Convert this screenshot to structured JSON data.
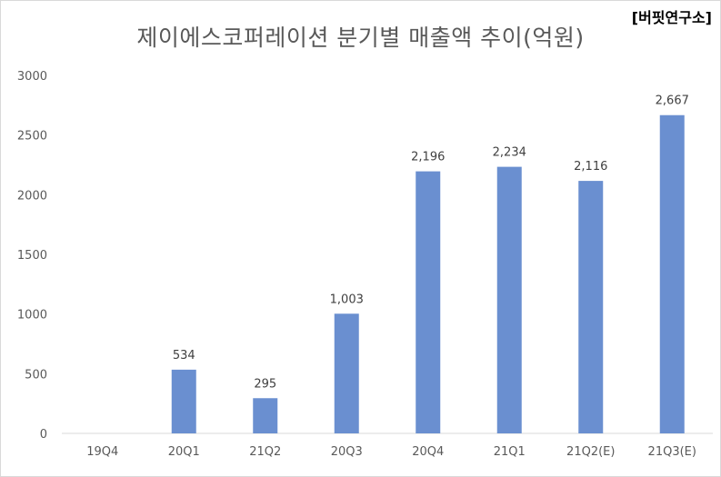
{
  "brand": "[버핏연구소]",
  "chart_data": {
    "type": "bar",
    "title": "제이에스코퍼레이션 분기별 매출액 추이(억원)",
    "categories": [
      "19Q4",
      "20Q1",
      "21Q2",
      "20Q3",
      "20Q4",
      "21Q1",
      "21Q2(E)",
      "21Q3(E)"
    ],
    "values": [
      null,
      534,
      295,
      1003,
      2196,
      2234,
      2116,
      2667
    ],
    "data_labels": [
      "",
      "534",
      "295",
      "1,003",
      "2,196",
      "2,234",
      "2,116",
      "2,667"
    ],
    "ylim": [
      0,
      3000
    ],
    "yticks": [
      0,
      500,
      1000,
      1500,
      2000,
      2500,
      3000
    ],
    "bar_color": "#6a8fd0",
    "grid": false,
    "legend": "none"
  }
}
